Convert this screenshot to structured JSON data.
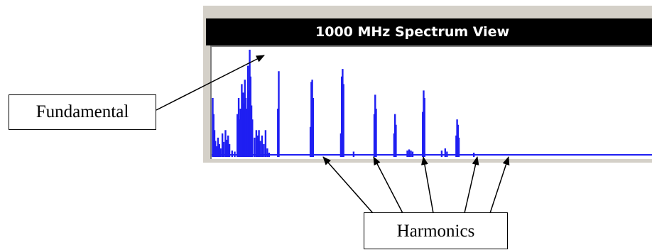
{
  "window": {
    "title": "1000 MHz Spectrum View"
  },
  "callouts": {
    "fundamental": "Fundamental",
    "harmonics": "Harmonics"
  },
  "colors": {
    "spectrum": "#1f1ff2",
    "title_bar_bg": "#000000",
    "title_text": "#ffffff",
    "panel": "#d4d0c8"
  },
  "chart_data": {
    "type": "bar",
    "title": "1000 MHz Spectrum View",
    "xlabel": "",
    "ylabel": "",
    "x_range": [
      0,
      1000
    ],
    "ylim": [
      0,
      100
    ],
    "grid": false,
    "baseline": 2,
    "peaks": [
      {
        "x": 0,
        "y": 55
      },
      {
        "x": 2,
        "y": 40
      },
      {
        "x": 4,
        "y": 25
      },
      {
        "x": 6,
        "y": 15
      },
      {
        "x": 9,
        "y": 10
      },
      {
        "x": 12,
        "y": 18
      },
      {
        "x": 15,
        "y": 12
      },
      {
        "x": 18,
        "y": 8
      },
      {
        "x": 22,
        "y": 22
      },
      {
        "x": 25,
        "y": 14
      },
      {
        "x": 29,
        "y": 25
      },
      {
        "x": 32,
        "y": 16
      },
      {
        "x": 35,
        "y": 20
      },
      {
        "x": 38,
        "y": 12
      },
      {
        "x": 44,
        "y": 6
      },
      {
        "x": 50,
        "y": 5
      },
      {
        "x": 56,
        "y": 40
      },
      {
        "x": 59,
        "y": 55
      },
      {
        "x": 61,
        "y": 35
      },
      {
        "x": 63,
        "y": 45
      },
      {
        "x": 66,
        "y": 68
      },
      {
        "x": 69,
        "y": 60
      },
      {
        "x": 71,
        "y": 50
      },
      {
        "x": 73,
        "y": 72
      },
      {
        "x": 75,
        "y": 55
      },
      {
        "x": 77,
        "y": 45
      },
      {
        "x": 80,
        "y": 85
      },
      {
        "x": 82,
        "y": 62
      },
      {
        "x": 84,
        "y": 100
      },
      {
        "x": 86,
        "y": 75
      },
      {
        "x": 88,
        "y": 48
      },
      {
        "x": 90,
        "y": 35
      },
      {
        "x": 95,
        "y": 18
      },
      {
        "x": 99,
        "y": 25
      },
      {
        "x": 102,
        "y": 20
      },
      {
        "x": 105,
        "y": 25
      },
      {
        "x": 108,
        "y": 15
      },
      {
        "x": 112,
        "y": 20
      },
      {
        "x": 116,
        "y": 12
      },
      {
        "x": 120,
        "y": 25
      },
      {
        "x": 124,
        "y": 8
      },
      {
        "x": 128,
        "y": 4
      },
      {
        "x": 148,
        "y": 45
      },
      {
        "x": 150,
        "y": 80
      },
      {
        "x": 222,
        "y": 28
      },
      {
        "x": 224,
        "y": 70
      },
      {
        "x": 226,
        "y": 72
      },
      {
        "x": 228,
        "y": 55
      },
      {
        "x": 291,
        "y": 22
      },
      {
        "x": 293,
        "y": 75
      },
      {
        "x": 295,
        "y": 82
      },
      {
        "x": 297,
        "y": 68
      },
      {
        "x": 320,
        "y": 5
      },
      {
        "x": 367,
        "y": 40
      },
      {
        "x": 369,
        "y": 58
      },
      {
        "x": 371,
        "y": 45
      },
      {
        "x": 412,
        "y": 22
      },
      {
        "x": 414,
        "y": 40
      },
      {
        "x": 416,
        "y": 30
      },
      {
        "x": 442,
        "y": 6
      },
      {
        "x": 446,
        "y": 7
      },
      {
        "x": 450,
        "y": 6
      },
      {
        "x": 454,
        "y": 5
      },
      {
        "x": 477,
        "y": 42
      },
      {
        "x": 479,
        "y": 62
      },
      {
        "x": 481,
        "y": 55
      },
      {
        "x": 520,
        "y": 6
      },
      {
        "x": 528,
        "y": 8
      },
      {
        "x": 532,
        "y": 5
      },
      {
        "x": 553,
        "y": 20
      },
      {
        "x": 555,
        "y": 35
      },
      {
        "x": 557,
        "y": 30
      },
      {
        "x": 559,
        "y": 18
      },
      {
        "x": 593,
        "y": 4
      }
    ]
  }
}
